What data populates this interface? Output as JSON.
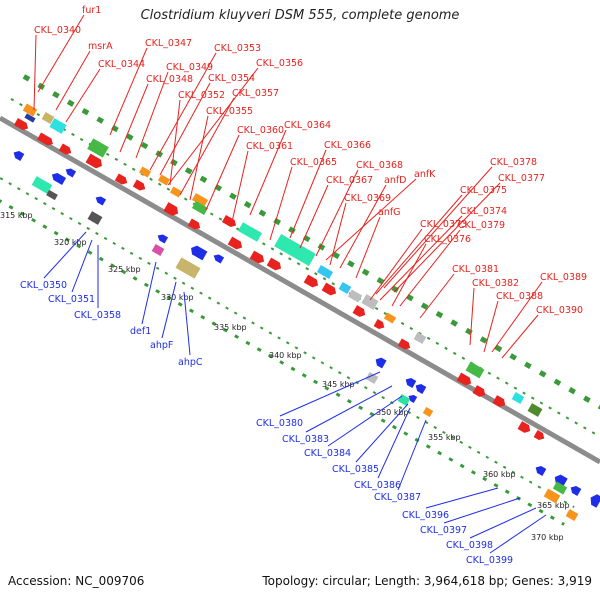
{
  "title": "Clostridium kluyveri DSM 555, complete genome",
  "footer": {
    "accession": "Accession: NC_009706",
    "info": "Topology: circular; Length: 3,964,618 bp; Genes: 3,919"
  },
  "colors": {
    "forward": "#e8221e",
    "reverse": "#1e2ee8",
    "backbone": "#8c8c8c",
    "dots": "#3a9a3a"
  },
  "scale_ticks": [
    "315 kbp",
    "320 kbp",
    "325 kbp",
    "330 kbp",
    "335 kbp",
    "340 kbp",
    "345 kbp",
    "350 kbp",
    "355 kbp",
    "360 kbp",
    "365 kbp",
    "370 kbp"
  ],
  "forward_labels": [
    "fur1",
    "CKL_0340",
    "msrA",
    "CKL_0344",
    "CKL_0347",
    "CKL_0348",
    "CKL_0349",
    "CKL_0353",
    "CKL_0354",
    "CKL_0356",
    "CKL_0352",
    "CKL_0357",
    "CKL_0355",
    "CKL_0360",
    "CKL_0364",
    "CKL_0361",
    "CKL_0366",
    "CKL_0365",
    "CKL_0368",
    "anfK",
    "CKL_0367",
    "anfD",
    "CKL_0369",
    "anfG",
    "CKL_0378",
    "CKL_0377",
    "CKL_0375",
    "CKL_0374",
    "CKL_0373",
    "CKL_0379",
    "CKL_0376",
    "CKL_0381",
    "CKL_0389",
    "CKL_0382",
    "CKL_0388",
    "CKL_0390"
  ],
  "reverse_labels": [
    "CKL_0350",
    "CKL_0351",
    "CKL_0358",
    "def1",
    "ahpF",
    "ahpC",
    "CKL_0380",
    "CKL_0383",
    "CKL_0384",
    "CKL_0385",
    "CKL_0386",
    "CKL_0387",
    "CKL_0396",
    "CKL_0397",
    "CKL_0398",
    "CKL_0399"
  ]
}
